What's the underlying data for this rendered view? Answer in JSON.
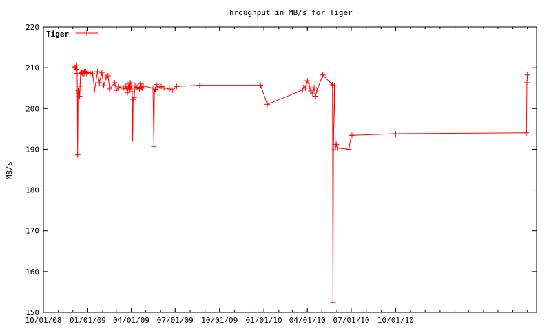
{
  "chart_data": {
    "type": "line",
    "title": "Throughput in MB/s for Tiger",
    "xlabel": "",
    "ylabel": "MB/s",
    "xlim": [
      "2008-10-01",
      "2011-07-20"
    ],
    "ylim": [
      150,
      220
    ],
    "grid": false,
    "legend_position": "top-left",
    "colors": {
      "series": "#ff0000",
      "axes": "#000000",
      "background": "#ffffff"
    },
    "x_ticks": [
      {
        "date": "2008-10-01",
        "label": "10/01/08"
      },
      {
        "date": "2009-01-01",
        "label": "01/01/09"
      },
      {
        "date": "2009-04-01",
        "label": "04/01/09"
      },
      {
        "date": "2009-07-01",
        "label": "07/01/09"
      },
      {
        "date": "2009-10-01",
        "label": "10/01/09"
      },
      {
        "date": "2010-01-01",
        "label": "01/01/10"
      },
      {
        "date": "2010-04-01",
        "label": "04/01/10"
      },
      {
        "date": "2010-07-01",
        "label": "07/01/10"
      },
      {
        "date": "2010-10-01",
        "label": "10/01/10"
      }
    ],
    "y_ticks": [
      150,
      160,
      170,
      180,
      190,
      200,
      210,
      220
    ],
    "series": [
      {
        "name": "Tiger",
        "points": [
          [
            "2008-12-04",
            210.2
          ],
          [
            "2008-12-06",
            210.0
          ],
          [
            "2008-12-08",
            209.6
          ],
          [
            "2008-12-09",
            210.5
          ],
          [
            "2008-12-10",
            208.6
          ],
          [
            "2008-12-11",
            188.6
          ],
          [
            "2008-12-12",
            204.3
          ],
          [
            "2008-12-13",
            203.6
          ],
          [
            "2008-12-14",
            204.0
          ],
          [
            "2008-12-15",
            203.0
          ],
          [
            "2008-12-16",
            205.5
          ],
          [
            "2008-12-17",
            208.4
          ],
          [
            "2008-12-19",
            208.8
          ],
          [
            "2008-12-21",
            208.6
          ],
          [
            "2008-12-22",
            209.2
          ],
          [
            "2008-12-24",
            208.5
          ],
          [
            "2008-12-25",
            209.0
          ],
          [
            "2008-12-26",
            208.7
          ],
          [
            "2008-12-28",
            209.0
          ],
          [
            "2008-12-29",
            208.6
          ],
          [
            "2008-12-31",
            208.8
          ],
          [
            "2009-01-06",
            208.7
          ],
          [
            "2009-01-11",
            208.5
          ],
          [
            "2009-01-15",
            204.5
          ],
          [
            "2009-01-21",
            209.0
          ],
          [
            "2009-01-25",
            206.3
          ],
          [
            "2009-01-30",
            208.7
          ],
          [
            "2009-02-03",
            205.6
          ],
          [
            "2009-02-08",
            207.7
          ],
          [
            "2009-02-12",
            208.0
          ],
          [
            "2009-02-15",
            204.8
          ],
          [
            "2009-02-26",
            206.3
          ],
          [
            "2009-03-01",
            204.4
          ],
          [
            "2009-03-06",
            205.3
          ],
          [
            "2009-03-11",
            205.0
          ],
          [
            "2009-03-16",
            205.1
          ],
          [
            "2009-03-19",
            204.8
          ],
          [
            "2009-03-21",
            205.5
          ],
          [
            "2009-03-24",
            203.8
          ],
          [
            "2009-03-26",
            205.3
          ],
          [
            "2009-03-28",
            206.0
          ],
          [
            "2009-03-29",
            204.8
          ],
          [
            "2009-03-30",
            206.3
          ],
          [
            "2009-03-31",
            205.0
          ],
          [
            "2009-04-02",
            205.6
          ],
          [
            "2009-04-03",
            204.1
          ],
          [
            "2009-04-04",
            192.5
          ],
          [
            "2009-04-05",
            202.2
          ],
          [
            "2009-04-07",
            202.7
          ],
          [
            "2009-04-09",
            205.5
          ],
          [
            "2009-04-13",
            205.2
          ],
          [
            "2009-04-15",
            205.0
          ],
          [
            "2009-04-18",
            204.8
          ],
          [
            "2009-04-20",
            206.0
          ],
          [
            "2009-04-22",
            205.2
          ],
          [
            "2009-04-24",
            205.0
          ],
          [
            "2009-04-26",
            205.5
          ],
          [
            "2009-05-16",
            205.0
          ],
          [
            "2009-05-18",
            190.7
          ],
          [
            "2009-05-19",
            204.0
          ],
          [
            "2009-05-21",
            204.7
          ],
          [
            "2009-05-23",
            205.9
          ],
          [
            "2009-05-26",
            205.0
          ],
          [
            "2009-06-02",
            205.4
          ],
          [
            "2009-06-08",
            205.0
          ],
          [
            "2009-06-19",
            204.8
          ],
          [
            "2009-06-26",
            204.5
          ],
          [
            "2009-07-04",
            205.4
          ],
          [
            "2009-08-21",
            205.7
          ],
          [
            "2009-12-25",
            205.7
          ],
          [
            "2010-01-08",
            201.0
          ],
          [
            "2010-03-22",
            204.5
          ],
          [
            "2010-03-25",
            205.6
          ],
          [
            "2010-03-28",
            205.0
          ],
          [
            "2010-04-01",
            206.8
          ],
          [
            "2010-04-05",
            205.5
          ],
          [
            "2010-04-08",
            204.3
          ],
          [
            "2010-04-12",
            203.6
          ],
          [
            "2010-04-15",
            205.1
          ],
          [
            "2010-04-18",
            203.0
          ],
          [
            "2010-04-21",
            204.5
          ],
          [
            "2010-05-03",
            208.2
          ],
          [
            "2010-05-23",
            205.8
          ],
          [
            "2010-05-24",
            152.4
          ],
          [
            "2010-05-25",
            189.9
          ],
          [
            "2010-05-27",
            205.6
          ],
          [
            "2010-05-29",
            190.3
          ],
          [
            "2010-05-31",
            191.2
          ],
          [
            "2010-06-03",
            190.3
          ],
          [
            "2010-06-26",
            190.0
          ],
          [
            "2010-07-01",
            193.4
          ],
          [
            "2010-07-04",
            193.4
          ],
          [
            "2010-10-01",
            193.8
          ],
          [
            "2011-06-29",
            194.0
          ],
          [
            "2011-06-30",
            206.3
          ],
          [
            "2011-07-01",
            208.2
          ]
        ]
      }
    ]
  }
}
